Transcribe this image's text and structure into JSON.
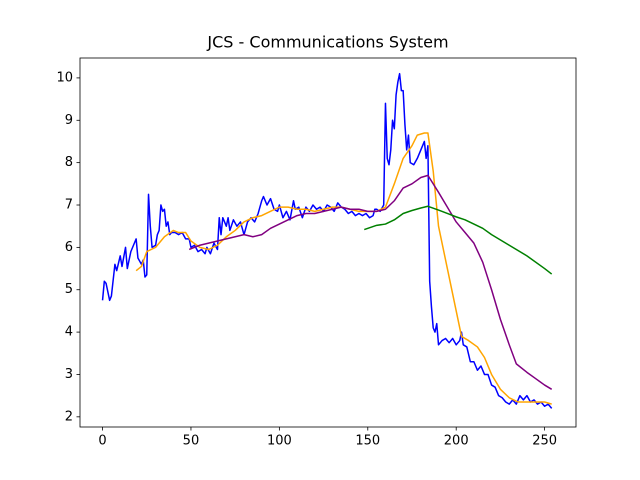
{
  "chart_data": {
    "type": "line",
    "title": "JCS - Communications System",
    "xlim": [
      -12.75,
      267.75
    ],
    "xticks": [
      0,
      50,
      100,
      150,
      200,
      250
    ],
    "ylim": [
      1.76,
      10.47
    ],
    "yticks": [
      2,
      3,
      4,
      5,
      6,
      7,
      8,
      9,
      10
    ],
    "series": [
      {
        "color": "#0000ff",
        "x": [
          0,
          1,
          2,
          4,
          5,
          7,
          8,
          10,
          11,
          13,
          14,
          16,
          18,
          19,
          20,
          22,
          23,
          24,
          25,
          26,
          27,
          28,
          30,
          31,
          32,
          33,
          34,
          35,
          36,
          37,
          38,
          39,
          41,
          43,
          45,
          47,
          49,
          50,
          52,
          54,
          56,
          58,
          59,
          61,
          63,
          65,
          66,
          67,
          68,
          70,
          71,
          72,
          74,
          76,
          78,
          80,
          82,
          84,
          86,
          88,
          90,
          91,
          93,
          95,
          97,
          99,
          100,
          102,
          104,
          106,
          108,
          109,
          111,
          113,
          115,
          117,
          119,
          121,
          123,
          125,
          127,
          129,
          131,
          133,
          135,
          137,
          139,
          141,
          143,
          145,
          147,
          149,
          151,
          153,
          154,
          155,
          157,
          159,
          160,
          161,
          162,
          163,
          164,
          165,
          166,
          167,
          168,
          169,
          170,
          171,
          172,
          173,
          174,
          176,
          178,
          180,
          182,
          183,
          184,
          185,
          186,
          187,
          188,
          189,
          190,
          192,
          194,
          196,
          198,
          200,
          202,
          203,
          204,
          206,
          208,
          210,
          212,
          214,
          216,
          218,
          220,
          222,
          224,
          226,
          228,
          230,
          232,
          234,
          236,
          238,
          240,
          242,
          244,
          246,
          248,
          250,
          252,
          254
        ],
        "values": [
          4.75,
          5.2,
          5.15,
          4.75,
          4.85,
          5.6,
          5.45,
          5.8,
          5.55,
          6.0,
          5.5,
          5.9,
          6.1,
          6.2,
          5.75,
          5.6,
          5.7,
          5.3,
          5.35,
          7.25,
          6.5,
          6.0,
          6.05,
          6.3,
          6.4,
          7.0,
          6.85,
          6.9,
          6.5,
          6.6,
          6.3,
          6.35,
          6.35,
          6.3,
          6.35,
          6.2,
          6.2,
          6.0,
          6.05,
          5.9,
          5.95,
          5.85,
          6.0,
          5.85,
          6.1,
          5.95,
          6.7,
          6.3,
          6.7,
          6.5,
          6.7,
          6.4,
          6.65,
          6.5,
          6.6,
          6.3,
          6.6,
          6.7,
          6.6,
          6.8,
          7.1,
          7.2,
          7.0,
          7.15,
          6.9,
          6.85,
          7.0,
          6.7,
          6.85,
          6.65,
          7.1,
          6.9,
          6.95,
          6.7,
          6.95,
          6.85,
          7.0,
          6.9,
          6.95,
          6.85,
          7.0,
          6.95,
          6.85,
          7.05,
          6.95,
          6.9,
          6.8,
          6.85,
          6.75,
          6.8,
          6.75,
          6.8,
          6.7,
          6.75,
          6.9,
          6.9,
          6.85,
          7.0,
          9.4,
          8.1,
          7.95,
          8.3,
          9.0,
          8.8,
          9.6,
          9.9,
          10.1,
          9.7,
          9.7,
          8.9,
          8.3,
          8.65,
          8.0,
          7.95,
          8.1,
          8.3,
          8.5,
          8.1,
          8.4,
          5.2,
          4.6,
          4.1,
          4.0,
          4.2,
          3.7,
          3.8,
          3.85,
          3.75,
          3.85,
          3.7,
          3.8,
          4.0,
          3.7,
          3.65,
          3.3,
          3.3,
          3.1,
          3.2,
          3.0,
          3.0,
          2.75,
          2.7,
          2.5,
          2.45,
          2.35,
          2.3,
          2.4,
          2.3,
          2.5,
          2.4,
          2.5,
          2.35,
          2.4,
          2.3,
          2.35,
          2.25,
          2.3,
          2.2
        ]
      },
      {
        "color": "#ffa500",
        "x": [
          19,
          22,
          25,
          30,
          35,
          40,
          43,
          47,
          50,
          55,
          60,
          65,
          70,
          75,
          80,
          85,
          90,
          95,
          100,
          105,
          110,
          115,
          120,
          125,
          130,
          135,
          140,
          145,
          150,
          155,
          160,
          165,
          170,
          175,
          178,
          182,
          184,
          187,
          190,
          195,
          200,
          203,
          207,
          212,
          216,
          220,
          225,
          230,
          235,
          240,
          245,
          250,
          254
        ],
        "values": [
          5.45,
          5.55,
          5.9,
          6.0,
          6.25,
          6.4,
          6.35,
          6.35,
          6.15,
          6.0,
          5.95,
          6.05,
          6.25,
          6.4,
          6.6,
          6.7,
          6.75,
          6.85,
          6.95,
          6.95,
          6.9,
          6.9,
          6.85,
          6.9,
          6.95,
          6.95,
          6.9,
          6.85,
          6.85,
          6.85,
          6.95,
          7.5,
          8.1,
          8.4,
          8.65,
          8.7,
          8.7,
          7.8,
          6.5,
          5.5,
          4.5,
          3.9,
          3.8,
          3.65,
          3.4,
          3.0,
          2.65,
          2.45,
          2.35,
          2.35,
          2.35,
          2.35,
          2.3
        ]
      },
      {
        "color": "#800080",
        "x": [
          49,
          55,
          60,
          65,
          70,
          75,
          80,
          85,
          90,
          95,
          100,
          105,
          110,
          115,
          120,
          125,
          130,
          135,
          140,
          145,
          150,
          155,
          160,
          165,
          170,
          175,
          180,
          184,
          190,
          195,
          200,
          205,
          210,
          215,
          220,
          225,
          230,
          234,
          240,
          245,
          250,
          254
        ],
        "values": [
          5.95,
          6.05,
          6.1,
          6.15,
          6.2,
          6.25,
          6.3,
          6.25,
          6.3,
          6.45,
          6.55,
          6.65,
          6.75,
          6.8,
          6.8,
          6.85,
          6.9,
          6.95,
          6.9,
          6.9,
          6.85,
          6.85,
          6.9,
          7.1,
          7.4,
          7.5,
          7.65,
          7.7,
          7.3,
          6.95,
          6.6,
          6.35,
          6.1,
          5.65,
          5.0,
          4.3,
          3.7,
          3.25,
          3.05,
          2.9,
          2.75,
          2.65
        ]
      },
      {
        "color": "#008000",
        "x": [
          148,
          155,
          160,
          165,
          170,
          175,
          180,
          184,
          190,
          195,
          200,
          205,
          210,
          215,
          220,
          230,
          240,
          250,
          254
        ],
        "values": [
          6.42,
          6.52,
          6.55,
          6.65,
          6.8,
          6.87,
          6.93,
          6.97,
          6.88,
          6.8,
          6.72,
          6.65,
          6.55,
          6.45,
          6.3,
          6.05,
          5.8,
          5.5,
          5.37
        ]
      }
    ]
  }
}
